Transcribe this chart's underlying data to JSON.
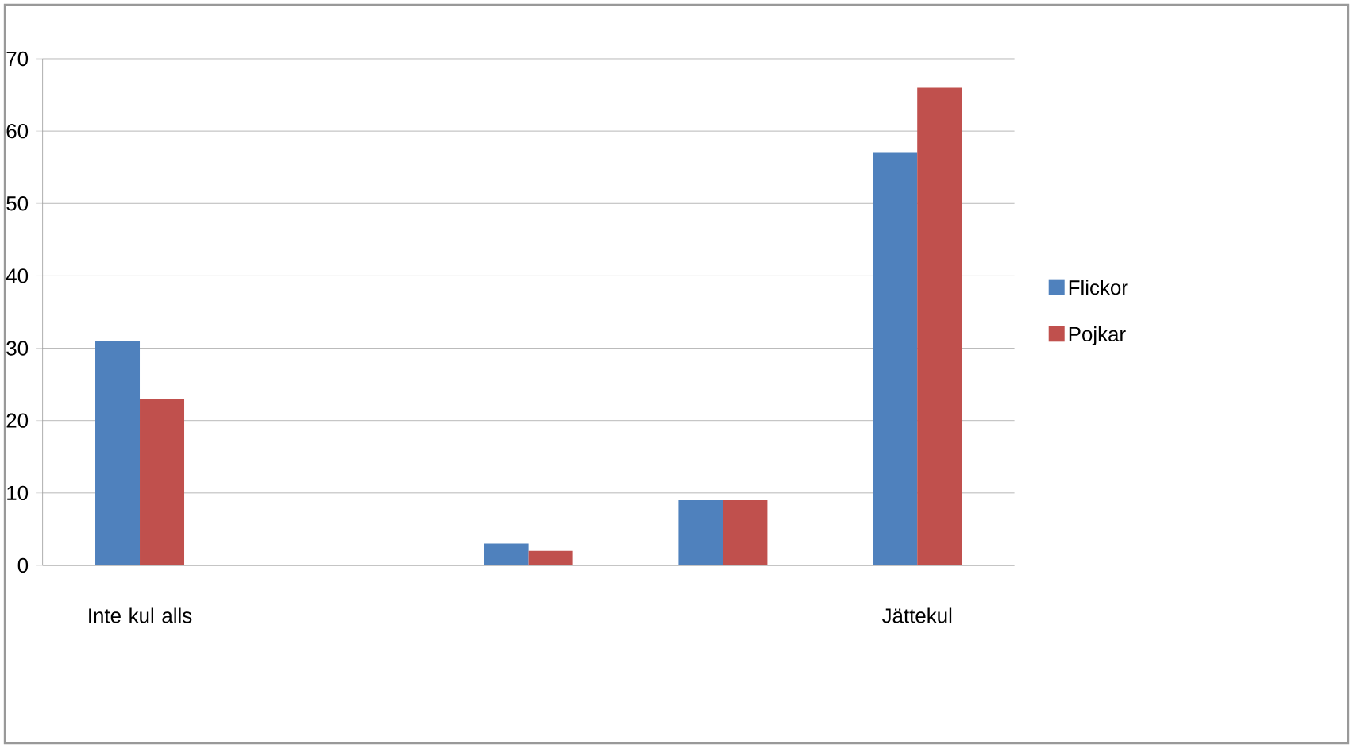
{
  "chart_data": {
    "type": "bar",
    "categories": [
      "Inte kul alls",
      null,
      null,
      null,
      "Jättekul"
    ],
    "series": [
      {
        "name": "Flickor",
        "color": "#4f81bd",
        "values": [
          31,
          0,
          3,
          9,
          57
        ]
      },
      {
        "name": "Pojkar",
        "color": "#c0504d",
        "values": [
          23,
          0,
          2,
          9,
          66
        ]
      }
    ],
    "ylim": [
      0,
      70
    ],
    "yticks": [
      0,
      10,
      20,
      30,
      40,
      50,
      60,
      70
    ],
    "grid": "y",
    "legend": "right"
  }
}
